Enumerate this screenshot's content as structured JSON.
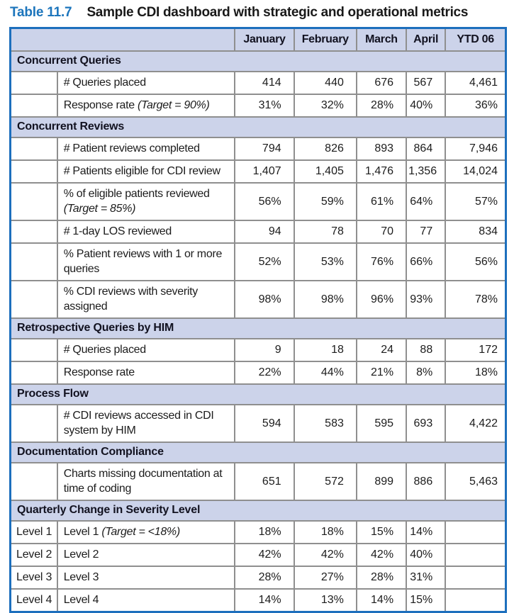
{
  "title": {
    "number": "Table 11.7",
    "caption": "Sample CDI dashboard with strategic and operational metrics"
  },
  "table": {
    "columns": [
      "January",
      "February",
      "March",
      "April",
      "YTD 06"
    ],
    "sections": [
      {
        "header": "Concurrent Queries",
        "rows": [
          {
            "row_label": "",
            "metric": "# Queries placed",
            "target": "",
            "values": [
              "414",
              "440",
              "676",
              "567",
              "4,461"
            ]
          },
          {
            "row_label": "",
            "metric": "Response rate",
            "target": "(Target = 90%)",
            "values": [
              "31%",
              "32%",
              "28%",
              "40%",
              "36%"
            ]
          }
        ]
      },
      {
        "header": "Concurrent Reviews",
        "rows": [
          {
            "row_label": "",
            "metric": "# Patient reviews completed",
            "target": "",
            "values": [
              "794",
              "826",
              "893",
              "864",
              "7,946"
            ]
          },
          {
            "row_label": "",
            "metric": "# Patients eligible for CDI review",
            "target": "",
            "values": [
              "1,407",
              "1,405",
              "1,476",
              "1,356",
              "14,024"
            ]
          },
          {
            "row_label": "",
            "metric": "% of eligible patients reviewed",
            "target": "(Target = 85%)",
            "values": [
              "56%",
              "59%",
              "61%",
              "64%",
              "57%"
            ]
          },
          {
            "row_label": "",
            "metric": "# 1-day LOS reviewed",
            "target": "",
            "values": [
              "94",
              "78",
              "70",
              "77",
              "834"
            ]
          },
          {
            "row_label": "",
            "metric": "% Patient reviews with 1 or more queries",
            "target": "",
            "values": [
              "52%",
              "53%",
              "76%",
              "66%",
              "56%"
            ]
          },
          {
            "row_label": "",
            "metric": "% CDI reviews with severity assigned",
            "target": "",
            "values": [
              "98%",
              "98%",
              "96%",
              "93%",
              "78%"
            ]
          }
        ]
      },
      {
        "header": "Retrospective Queries by HIM",
        "rows": [
          {
            "row_label": "",
            "metric": "# Queries placed",
            "target": "",
            "values": [
              "9",
              "18",
              "24",
              "88",
              "172"
            ]
          },
          {
            "row_label": "",
            "metric": "Response rate",
            "target": "",
            "values": [
              "22%",
              "44%",
              "21%",
              "8%",
              "18%"
            ]
          }
        ]
      },
      {
        "header": "Process Flow",
        "rows": [
          {
            "row_label": "",
            "metric": "# CDI reviews accessed in CDI system by HIM",
            "target": "",
            "values": [
              "594",
              "583",
              "595",
              "693",
              "4,422"
            ]
          }
        ]
      },
      {
        "header": "Documentation Compliance",
        "rows": [
          {
            "row_label": "",
            "metric": "Charts missing documentation at time of coding",
            "target": "",
            "values": [
              "651",
              "572",
              "899",
              "886",
              "5,463"
            ]
          }
        ]
      },
      {
        "header": "Quarterly Change in Severity Level",
        "rows": [
          {
            "row_label": "Level 1",
            "metric": "Level 1",
            "target": "(Target = <18%)",
            "values": [
              "18%",
              "18%",
              "15%",
              "14%",
              ""
            ]
          },
          {
            "row_label": "Level 2",
            "metric": "Level 2",
            "target": "",
            "values": [
              "42%",
              "42%",
              "42%",
              "40%",
              ""
            ]
          },
          {
            "row_label": "Level 3",
            "metric": "Level 3",
            "target": "",
            "values": [
              "28%",
              "27%",
              "28%",
              "31%",
              ""
            ]
          },
          {
            "row_label": "Level 4",
            "metric": "Level 4",
            "target": "",
            "values": [
              "14%",
              "13%",
              "14%",
              "15%",
              ""
            ]
          }
        ]
      }
    ]
  },
  "colors": {
    "accent_blue": "#1c75bc",
    "outer_border_blue": "#1d6fbd",
    "inner_border_gray": "#8f8f8f",
    "band_lavender": "#ccd3ea"
  }
}
